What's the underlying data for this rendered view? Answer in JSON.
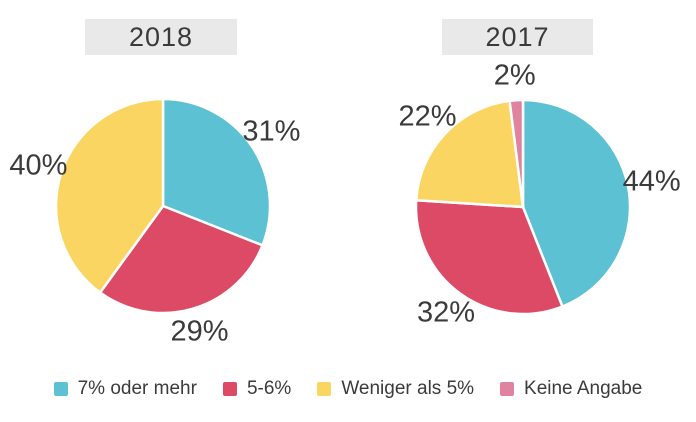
{
  "styles": {
    "page_background": "#ffffff",
    "title_bg": "#e9e9e9",
    "title_text_color": "#3a3a3a",
    "label_text_color": "#3b3b3b",
    "slice_separator_color": "#ffffff"
  },
  "chart_data": [
    {
      "type": "pie",
      "title": "2018",
      "labels": [
        "7% oder mehr",
        "5-6%",
        "Weniger als 5%"
      ],
      "values": [
        31,
        29,
        40
      ],
      "value_labels": [
        "31%",
        "29%",
        "40%"
      ],
      "colors": [
        "#5cc1d3",
        "#dd4a66",
        "#fbd561"
      ],
      "start_angle_deg": 0,
      "direction": "clockwise",
      "legend_position": "bottom"
    },
    {
      "type": "pie",
      "title": "2017",
      "labels": [
        "7% oder mehr",
        "5-6%",
        "Weniger als 5%",
        "Keine Angabe"
      ],
      "values": [
        44,
        32,
        22,
        2
      ],
      "value_labels": [
        "44%",
        "32%",
        "22%",
        "2%"
      ],
      "colors": [
        "#5cc1d3",
        "#dd4a66",
        "#fbd561",
        "#e083a0"
      ],
      "start_angle_deg": 0,
      "direction": "clockwise",
      "legend_position": "bottom"
    }
  ],
  "legend": {
    "items": [
      {
        "label": "7% oder mehr",
        "color": "#5cc1d3"
      },
      {
        "label": "5-6%",
        "color": "#dd4a66"
      },
      {
        "label": "Weniger als 5%",
        "color": "#fbd561"
      },
      {
        "label": "Keine Angabe",
        "color": "#e083a0"
      }
    ]
  }
}
